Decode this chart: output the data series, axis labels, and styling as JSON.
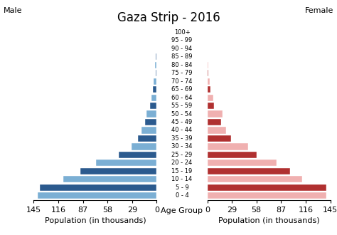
{
  "title": "Gaza Strip - 2016",
  "male_label": "Male",
  "female_label": "Female",
  "xlabel_left": "Population (in thousands)",
  "xlabel_center": "Age Group",
  "xlabel_right": "Population (in thousands)",
  "age_groups": [
    "0 - 4",
    "5 - 9",
    "10 - 14",
    "15 - 19",
    "20 - 24",
    "25 - 29",
    "30 - 34",
    "35 - 39",
    "40 - 44",
    "45 - 49",
    "50 - 54",
    "55 - 59",
    "60 - 64",
    "65 - 69",
    "70 - 74",
    "75 - 79",
    "80 - 84",
    "85 - 89",
    "90 - 94",
    "95 - 99",
    "100+"
  ],
  "male_values": [
    140,
    138,
    110,
    90,
    72,
    45,
    30,
    22,
    18,
    14,
    12,
    8,
    6,
    4.5,
    3.5,
    1.5,
    2.0,
    0.8,
    0.5,
    0.3,
    0.2
  ],
  "female_values": [
    140,
    140,
    112,
    98,
    82,
    58,
    48,
    28,
    22,
    16,
    18,
    8,
    7,
    4.0,
    3.0,
    1.2,
    1.5,
    0.8,
    0.5,
    0.3,
    0.1
  ],
  "male_light": "#7bafd4",
  "male_dark": "#2b5a8e",
  "female_light": "#f0b0b0",
  "female_dark": "#b03030",
  "xlim": 145,
  "xticks": [
    0,
    29,
    58,
    87,
    116,
    145
  ],
  "bar_height": 0.8,
  "title_fontsize": 12,
  "label_fontsize": 8,
  "tick_fontsize": 8,
  "age_fontsize": 6.0
}
